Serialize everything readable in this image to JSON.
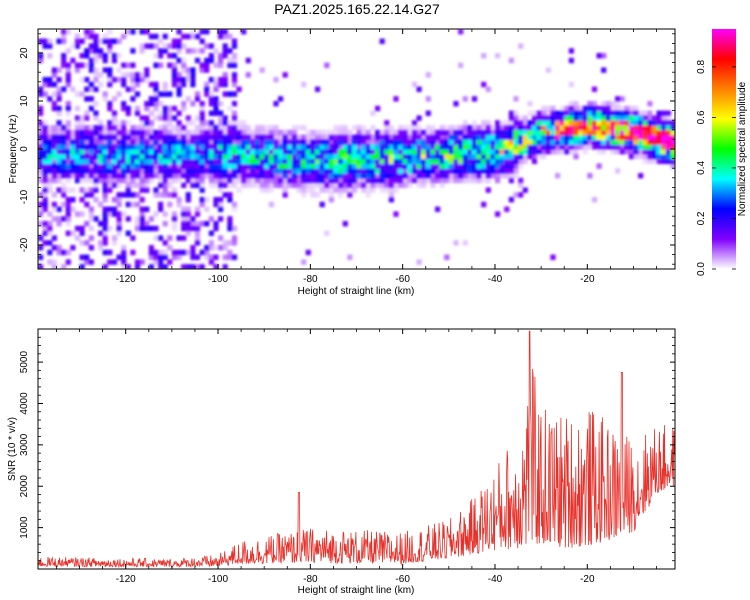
{
  "title": "PAZ1.2025.165.22.14.G27",
  "chart_data": [
    {
      "type": "heatmap",
      "xlabel": "Height of straight line (km)",
      "ylabel": "Frequency (Hz)",
      "xlim": [
        -139,
        -1
      ],
      "ylim": [
        -25,
        25
      ],
      "xticks": [
        -120,
        -100,
        -80,
        -60,
        -40,
        -20
      ],
      "yticks": [
        -20,
        -10,
        0,
        10,
        20
      ],
      "colorbar": {
        "label": "Normalized spectral amplitude",
        "range": [
          0,
          0.95
        ],
        "ticks": [
          0.0,
          0.2,
          0.4,
          0.6,
          0.8
        ],
        "tick_labels": [
          "0.0",
          "0.2",
          "0.4",
          "0.6",
          "0.8"
        ],
        "colormap": [
          "#ffffff",
          "#8000ff",
          "#0000ff",
          "#00ffff",
          "#00ff00",
          "#ffff00",
          "#ff8000",
          "#ff0000",
          "#ff00ff"
        ]
      },
      "ridge": {
        "x": [
          -139,
          -120,
          -100,
          -80,
          -60,
          -50,
          -40,
          -35,
          -30,
          -20,
          -10,
          -1
        ],
        "y": [
          -1.5,
          -2,
          -1.5,
          -3,
          -2.5,
          -1.5,
          -1,
          1,
          3,
          4.5,
          3,
          0.5
        ]
      },
      "grid": false
    },
    {
      "type": "line",
      "xlabel": "Height of straight line (km)",
      "ylabel": "SNR (10 * v/v)",
      "xlim": [
        -139,
        -1
      ],
      "ylim": [
        0,
        5800
      ],
      "xticks": [
        -120,
        -100,
        -80,
        -60,
        -40,
        -20
      ],
      "yticks": [
        1000,
        2000,
        3000,
        4000,
        5000
      ],
      "color": "#e8302a",
      "envelope": {
        "x": [
          -139,
          -110,
          -100,
          -95,
          -80,
          -60,
          -50,
          -45,
          -40,
          -35,
          -32,
          -30,
          -25,
          -20,
          -15,
          -10,
          -5,
          -1
        ],
        "base": [
          60,
          50,
          60,
          120,
          150,
          120,
          250,
          350,
          450,
          500,
          550,
          600,
          500,
          550,
          700,
          900,
          1800,
          2000
        ],
        "peak": [
          300,
          250,
          350,
          700,
          1000,
          900,
          1200,
          1700,
          2500,
          3500,
          5000,
          4000,
          3800,
          4000,
          3500,
          3200,
          3500,
          3500
        ]
      },
      "grid": false
    }
  ]
}
